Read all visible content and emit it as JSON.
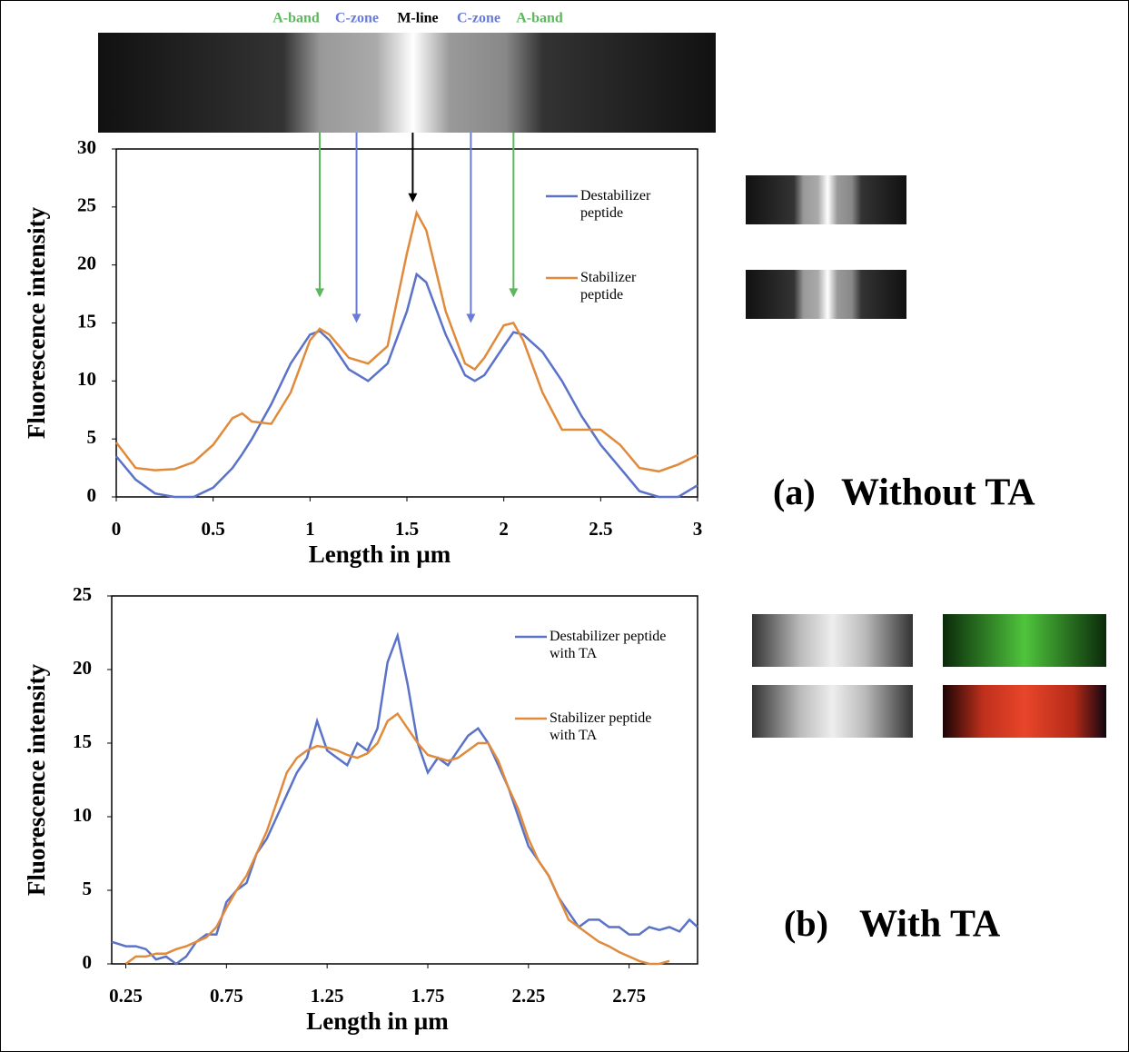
{
  "chart_data": [
    {
      "type": "line",
      "panel_label": "(a)",
      "caption": "Without TA",
      "x_label": "Length in µm",
      "y_label": "Fluorescence intensity",
      "xlim": [
        0,
        3
      ],
      "xticks": [
        0,
        0.5,
        1,
        1.5,
        2,
        2.5,
        3
      ],
      "ylim": [
        0,
        30
      ],
      "yticks": [
        0,
        5,
        10,
        15,
        20,
        25,
        30
      ],
      "x": [
        0,
        0.1,
        0.2,
        0.3,
        0.4,
        0.5,
        0.6,
        0.65,
        0.7,
        0.8,
        0.9,
        1.0,
        1.05,
        1.1,
        1.2,
        1.3,
        1.4,
        1.5,
        1.55,
        1.6,
        1.7,
        1.8,
        1.85,
        1.9,
        2.0,
        2.05,
        2.1,
        2.2,
        2.3,
        2.4,
        2.5,
        2.6,
        2.7,
        2.8,
        2.9,
        3.0
      ],
      "series": [
        {
          "name": "Destabilizer peptide",
          "color": "#5b72c9",
          "values": [
            3.5,
            1.5,
            0.3,
            0,
            0,
            0.8,
            2.5,
            3.7,
            5,
            8,
            11.5,
            14,
            14.3,
            13.5,
            11,
            10,
            11.5,
            16,
            19.2,
            18.5,
            14,
            10.5,
            10,
            10.5,
            13,
            14.2,
            14,
            12.5,
            10,
            7,
            4.5,
            2.5,
            0.5,
            0,
            0,
            1
          ]
        },
        {
          "name": "Stabilizer peptide",
          "color": "#e08a3c",
          "values": [
            4.7,
            2.5,
            2.3,
            2.4,
            3,
            4.5,
            6.8,
            7.2,
            6.5,
            6.3,
            9,
            13.5,
            14.5,
            14,
            12,
            11.5,
            13,
            21,
            24.5,
            23,
            16,
            11.5,
            11,
            12,
            14.8,
            15,
            13.5,
            9,
            5.8,
            5.8,
            5.8,
            4.5,
            2.5,
            2.2,
            2.8,
            3.6
          ]
        }
      ],
      "annotations": [
        {
          "text": "A-band",
          "x": 1.05,
          "y": 17.2,
          "color": "#5cb85c"
        },
        {
          "text": "C-zone",
          "x": 1.24,
          "y": 15,
          "color": "#6a7bd6"
        },
        {
          "text": "M-line",
          "x": 1.53,
          "y": 25.4,
          "color": "#000000"
        },
        {
          "text": "C-zone",
          "x": 1.83,
          "y": 15,
          "color": "#6a7bd6"
        },
        {
          "text": "A-band",
          "x": 2.05,
          "y": 17.2,
          "color": "#5cb85c"
        }
      ]
    },
    {
      "type": "line",
      "panel_label": "(b)",
      "caption": "With TA",
      "x_label": "Length in µm",
      "y_label": "Fluorescence intensity",
      "xlim": [
        0.18,
        3.09
      ],
      "xticks": [
        0.25,
        0.75,
        1.25,
        1.75,
        2.25,
        2.75
      ],
      "ylim": [
        0,
        25
      ],
      "yticks": [
        0,
        5,
        10,
        15,
        20,
        25
      ],
      "x": [
        0.18,
        0.25,
        0.3,
        0.35,
        0.4,
        0.45,
        0.5,
        0.55,
        0.6,
        0.65,
        0.7,
        0.75,
        0.8,
        0.85,
        0.9,
        0.95,
        1.0,
        1.05,
        1.1,
        1.15,
        1.2,
        1.25,
        1.3,
        1.35,
        1.4,
        1.45,
        1.5,
        1.55,
        1.6,
        1.65,
        1.7,
        1.75,
        1.8,
        1.85,
        1.9,
        1.95,
        2.0,
        2.05,
        2.1,
        2.15,
        2.2,
        2.25,
        2.3,
        2.35,
        2.4,
        2.45,
        2.5,
        2.55,
        2.6,
        2.65,
        2.7,
        2.75,
        2.8,
        2.85,
        2.9,
        2.95,
        3.0,
        3.05,
        3.09
      ],
      "series": [
        {
          "name": "Destabilizer peptide with TA",
          "color": "#5b72c9",
          "values": [
            1.5,
            1.2,
            1.2,
            1,
            0.3,
            0.5,
            0,
            0.5,
            1.5,
            2,
            2,
            4.2,
            5,
            5.5,
            7.5,
            8.5,
            10,
            11.5,
            13,
            14,
            16.5,
            14.5,
            14,
            13.5,
            15,
            14.5,
            16,
            20.5,
            22.3,
            19,
            15,
            13,
            14,
            13.5,
            14.5,
            15.5,
            16,
            15,
            13.5,
            12,
            10,
            8,
            7,
            6,
            4.5,
            3.5,
            2.5,
            3,
            3,
            2.5,
            2.5,
            2,
            2,
            2.5,
            2.3,
            2.5,
            2.2,
            3,
            2.5
          ]
        },
        {
          "name": "Stabilizer peptide with TA",
          "color": "#e08a3c",
          "values": [
            null,
            0,
            0.5,
            0.5,
            0.7,
            0.7,
            1,
            1.2,
            1.5,
            1.8,
            2.5,
            3.8,
            5,
            6,
            7.5,
            9,
            11,
            13,
            14,
            14.5,
            14.8,
            14.7,
            14.5,
            14.2,
            14,
            14.3,
            15,
            16.5,
            17,
            16,
            15,
            14.2,
            14,
            13.8,
            14,
            14.5,
            15,
            15,
            13.8,
            12,
            10.5,
            8.5,
            7,
            6,
            4.5,
            3,
            2.5,
            2,
            1.5,
            1.2,
            0.8,
            0.5,
            0.2,
            0,
            0,
            0.2,
            null,
            null,
            null
          ]
        }
      ]
    }
  ]
}
